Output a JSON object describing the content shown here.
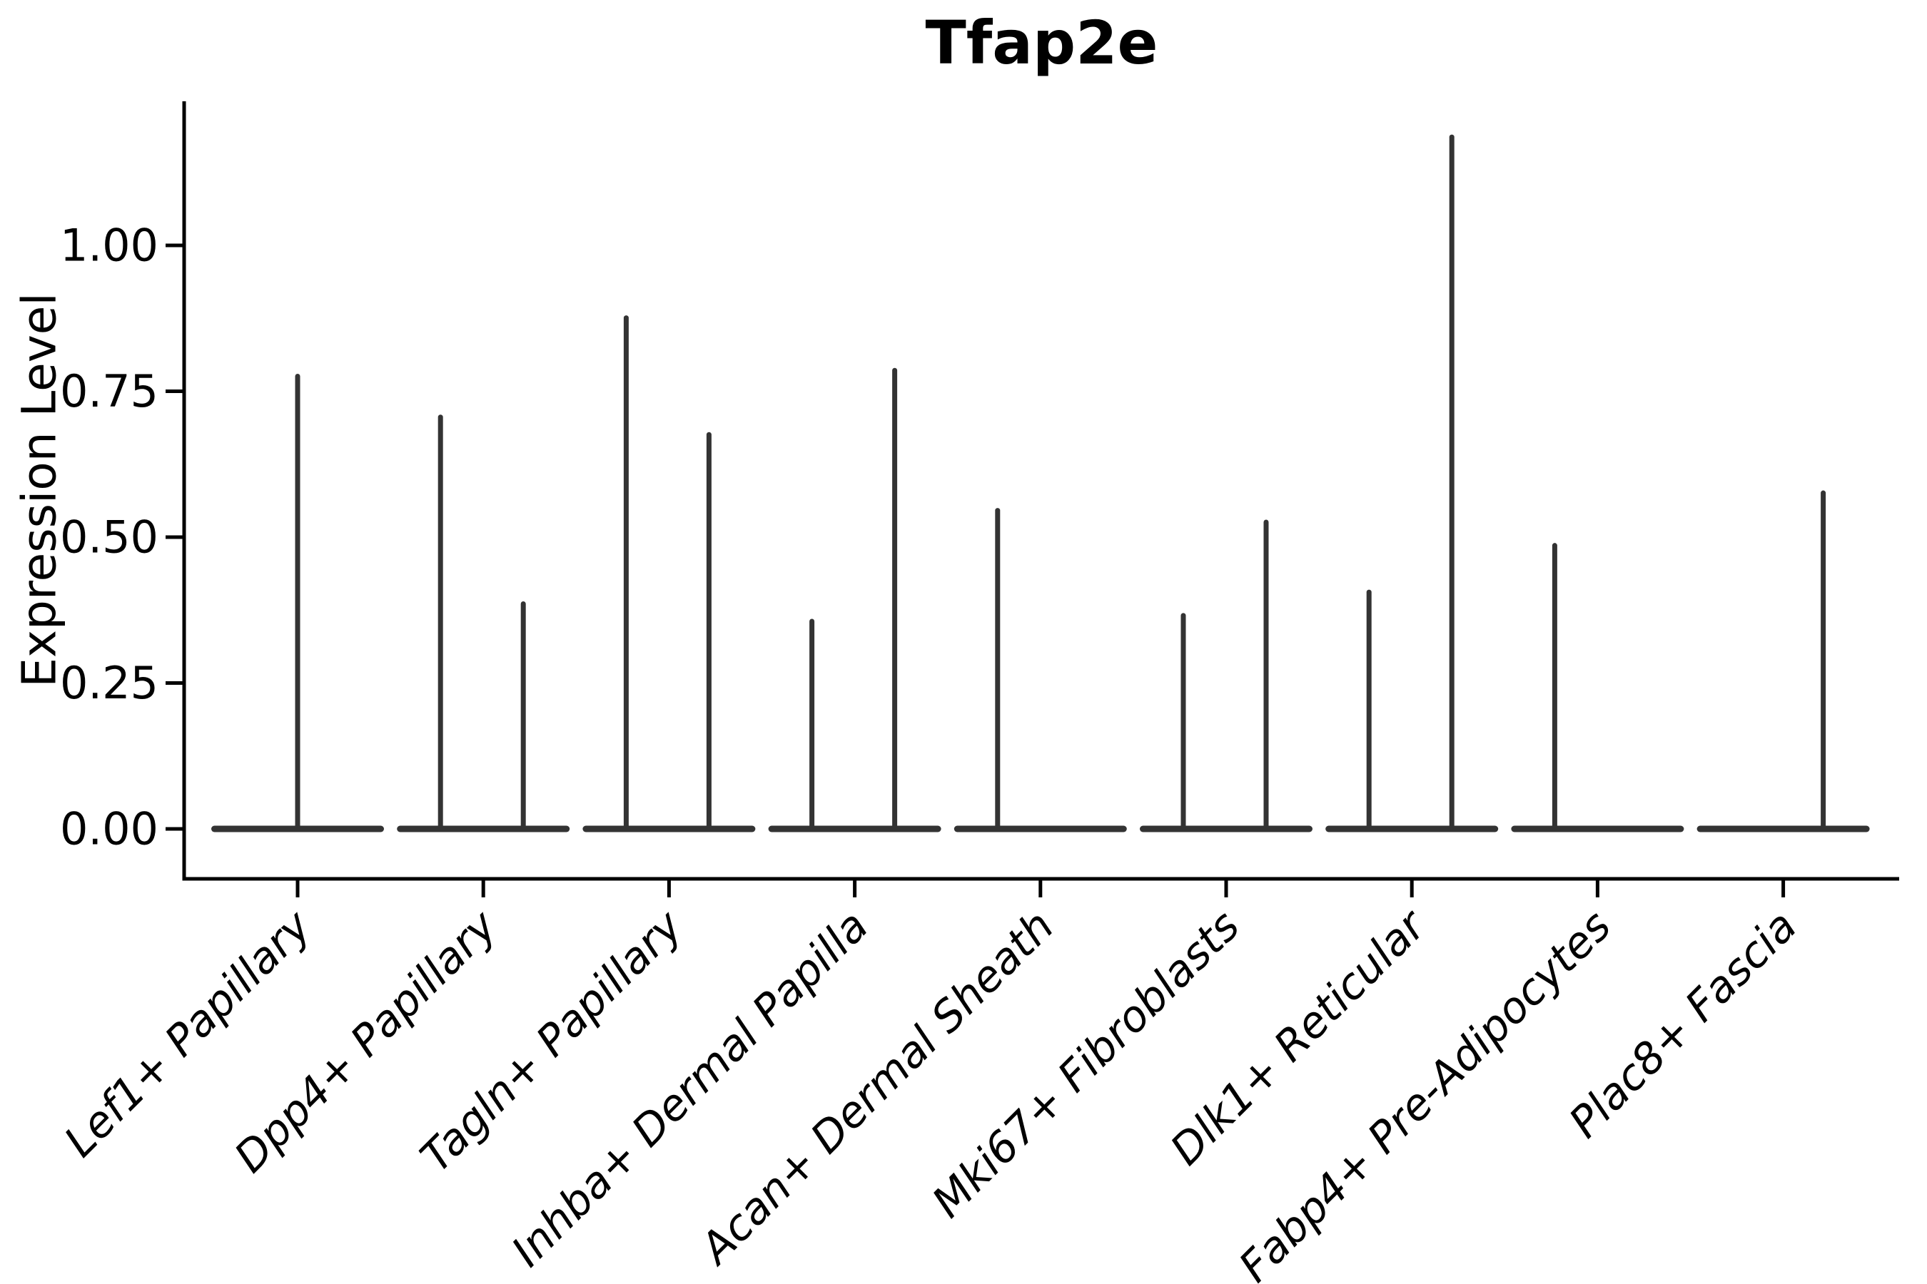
{
  "chart_data": {
    "type": "violin",
    "title": "Tfap2e",
    "ylabel": "Expression Level",
    "xlabel": "",
    "yticks": [
      "0.00",
      "0.25",
      "0.50",
      "0.75",
      "1.00"
    ],
    "ytick_values": [
      0.0,
      0.25,
      0.5,
      0.75,
      1.0
    ],
    "ylim": [
      -0.086,
      1.248
    ],
    "grid": false,
    "legend": "none",
    "x_label_rotation_deg": 45,
    "categories": [
      "Lef1+ Papillary",
      "Dpp4+ Papillary",
      "Tagln+ Papillary",
      "Inhba+ Dermal Papilla",
      "Acan+ Dermal Sheath",
      "Mki67+ Fibroblasts",
      "Dlk1+ Reticular",
      "Fabp4+ Pre-Adipocytes",
      "Plac8+ Fascia"
    ],
    "violins": [
      {
        "category": "Lef1+ Papillary",
        "baseline_value": 0,
        "spikes": [
          {
            "pos": "center",
            "max": 0.78
          }
        ]
      },
      {
        "category": "Dpp4+ Papillary",
        "baseline_value": 0,
        "spikes": [
          {
            "pos": "left",
            "max": 0.71
          },
          {
            "pos": "right",
            "max": 0.39
          }
        ]
      },
      {
        "category": "Tagln+ Papillary",
        "baseline_value": 0,
        "spikes": [
          {
            "pos": "left",
            "max": 0.88
          },
          {
            "pos": "right",
            "max": 0.68
          }
        ]
      },
      {
        "category": "Inhba+ Dermal Papilla",
        "baseline_value": 0,
        "spikes": [
          {
            "pos": "left",
            "max": 0.36
          },
          {
            "pos": "right",
            "max": 0.79
          }
        ]
      },
      {
        "category": "Acan+ Dermal Sheath",
        "baseline_value": 0,
        "spikes": [
          {
            "pos": "left",
            "max": 0.55
          }
        ]
      },
      {
        "category": "Mki67+ Fibroblasts",
        "baseline_value": 0,
        "spikes": [
          {
            "pos": "left",
            "max": 0.37
          },
          {
            "pos": "right",
            "max": 0.53
          }
        ]
      },
      {
        "category": "Dlk1+ Reticular",
        "baseline_value": 0,
        "spikes": [
          {
            "pos": "left",
            "max": 0.41
          },
          {
            "pos": "right",
            "max": 1.19
          }
        ]
      },
      {
        "category": "Fabp4+ Pre-Adipocytes",
        "baseline_value": 0,
        "spikes": [
          {
            "pos": "left",
            "max": 0.49
          }
        ]
      },
      {
        "category": "Plac8+ Fascia",
        "baseline_value": 0,
        "spikes": [
          {
            "pos": "right",
            "max": 0.58
          }
        ]
      }
    ],
    "colors": {
      "violin": "#333333",
      "axis": "#000000",
      "text": "#000000",
      "background": "#ffffff"
    }
  }
}
